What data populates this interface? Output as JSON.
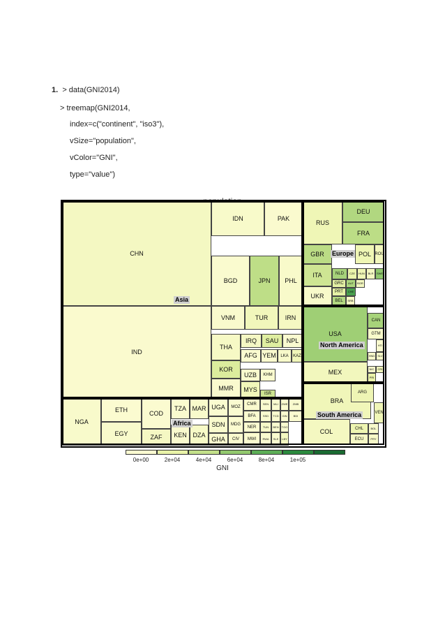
{
  "code": {
    "number": "1.",
    "lines": [
      "> data(GNI2014)",
      "> treemap(GNI2014,",
      "index=c(\"continent\", \"iso3\"),",
      "vSize=\"population\",",
      "vColor=\"GNI\",",
      "type=\"value\")"
    ]
  },
  "treemap": {
    "title": "population",
    "continents": [
      "Asia",
      "Europe",
      "North America",
      "Africa",
      "South America"
    ],
    "cells": [
      {
        "label": "CHN",
        "continent": "Asia",
        "gni": 7400
      },
      {
        "label": "IND",
        "continent": "Asia",
        "gni": 1570
      },
      {
        "label": "IDN",
        "continent": "Asia",
        "gni": 3630
      },
      {
        "label": "PAK",
        "continent": "Asia",
        "gni": 1400
      },
      {
        "label": "BGD",
        "continent": "Asia",
        "gni": 1080
      },
      {
        "label": "JPN",
        "continent": "Asia",
        "gni": 42000
      },
      {
        "label": "PHL",
        "continent": "Asia",
        "gni": 3500
      },
      {
        "label": "VNM",
        "continent": "Asia",
        "gni": 1890
      },
      {
        "label": "TUR",
        "continent": "Asia",
        "gni": 10830
      },
      {
        "label": "IRN",
        "continent": "Asia",
        "gni": 7120
      },
      {
        "label": "THA",
        "continent": "Asia",
        "gni": 5780
      },
      {
        "label": "IRQ",
        "continent": "Asia",
        "gni": 6500
      },
      {
        "label": "SAU",
        "continent": "Asia",
        "gni": 25140
      },
      {
        "label": "NPL",
        "continent": "Asia",
        "gni": 730
      },
      {
        "label": "AFG",
        "continent": "Asia",
        "gni": 680
      },
      {
        "label": "YEM",
        "continent": "Asia",
        "gni": 1300
      },
      {
        "label": "LKA",
        "continent": "Asia",
        "gni": 3400
      },
      {
        "label": "KAZ",
        "continent": "Asia",
        "gni": 11670
      },
      {
        "label": "KOR",
        "continent": "Asia",
        "gni": 27090
      },
      {
        "label": "UZB",
        "continent": "Asia",
        "gni": 2090
      },
      {
        "label": "KHM",
        "continent": "Asia",
        "gni": 1020
      },
      {
        "label": "MMR",
        "continent": "Asia",
        "gni": 1270
      },
      {
        "label": "MYS",
        "continent": "Asia",
        "gni": 11120
      },
      {
        "label": "ISR",
        "continent": "Asia",
        "gni": 35320
      },
      {
        "label": "RUS",
        "continent": "Europe",
        "gni": 13220
      },
      {
        "label": "DEU",
        "continent": "Europe",
        "gni": 47640
      },
      {
        "label": "FRA",
        "continent": "Europe",
        "gni": 42960
      },
      {
        "label": "GBR",
        "continent": "Europe",
        "gni": 43430
      },
      {
        "label": "POL",
        "continent": "Europe",
        "gni": 13730
      },
      {
        "label": "ROU",
        "continent": "Europe",
        "gni": 9520
      },
      {
        "label": "ITA",
        "continent": "Europe",
        "gni": 34270
      },
      {
        "label": "NLD",
        "continent": "Europe",
        "gni": 51890
      },
      {
        "label": "CZE",
        "continent": "Europe",
        "gni": 18350
      },
      {
        "label": "HUN",
        "continent": "Europe",
        "gni": 13470
      },
      {
        "label": "BLR",
        "continent": "Europe",
        "gni": 7340
      },
      {
        "label": "SWE",
        "continent": "Europe",
        "gni": 61610
      },
      {
        "label": "GRC",
        "continent": "Europe",
        "gni": 22680
      },
      {
        "label": "AUT",
        "continent": "Europe",
        "gni": 49670
      },
      {
        "label": "BGR",
        "continent": "Europe",
        "gni": 7620
      },
      {
        "label": "UKR",
        "continent": "Europe",
        "gni": 3560
      },
      {
        "label": "PRT",
        "continent": "Europe",
        "gni": 21360
      },
      {
        "label": "CHE",
        "continent": "Europe",
        "gni": 88120
      },
      {
        "label": "BEL",
        "continent": "Europe",
        "gni": 47260
      },
      {
        "label": "SRB",
        "continent": "Europe",
        "gni": 5820
      },
      {
        "label": "USA",
        "continent": "North America",
        "gni": 55200
      },
      {
        "label": "CAN",
        "continent": "North America",
        "gni": 51630
      },
      {
        "label": "GTM",
        "continent": "North America",
        "gni": 3430
      },
      {
        "label": "HTI",
        "continent": "North America",
        "gni": 830
      },
      {
        "label": "HND",
        "continent": "North America",
        "gni": 2270
      },
      {
        "label": "SLV",
        "continent": "North America",
        "gni": 3920
      },
      {
        "label": "NIC",
        "continent": "North America",
        "gni": 1870
      },
      {
        "label": "CRI",
        "continent": "North America",
        "gni": 10120
      },
      {
        "label": "PRI",
        "continent": "North America",
        "gni": 19310
      },
      {
        "label": "MEX",
        "continent": "North America",
        "gni": 9870
      },
      {
        "label": "BRA",
        "continent": "South America",
        "gni": 11760
      },
      {
        "label": "ARG",
        "continent": "South America",
        "gni": 14160
      },
      {
        "label": "VEN",
        "continent": "South America",
        "gni": 12500
      },
      {
        "label": "COL",
        "continent": "South America",
        "gni": 7970
      },
      {
        "label": "CHL",
        "continent": "South America",
        "gni": 14910
      },
      {
        "label": "BOL",
        "continent": "South America",
        "gni": 2870
      },
      {
        "label": "ECU",
        "continent": "South America",
        "gni": 6090
      },
      {
        "label": "PRY",
        "continent": "South America",
        "gni": 4400
      },
      {
        "label": "NGA",
        "continent": "Africa",
        "gni": 2950
      },
      {
        "label": "ETH",
        "continent": "Africa",
        "gni": 550
      },
      {
        "label": "EGY",
        "continent": "Africa",
        "gni": 3050
      },
      {
        "label": "COD",
        "continent": "Africa",
        "gni": 380
      },
      {
        "label": "ZAF",
        "continent": "Africa",
        "gni": 6800
      },
      {
        "label": "TZA",
        "continent": "Africa",
        "gni": 930
      },
      {
        "label": "MAR",
        "continent": "Africa",
        "gni": 3070
      },
      {
        "label": "KEN",
        "continent": "Africa",
        "gni": 1290
      },
      {
        "label": "DZA",
        "continent": "Africa",
        "gni": 5490
      },
      {
        "label": "UGA",
        "continent": "Africa",
        "gni": 670
      },
      {
        "label": "MOZ",
        "continent": "Africa",
        "gni": 600
      },
      {
        "label": "SDN",
        "continent": "Africa",
        "gni": 1710
      },
      {
        "label": "MDG",
        "continent": "Africa",
        "gni": 440
      },
      {
        "label": "GHA",
        "continent": "Africa",
        "gni": 1590
      },
      {
        "label": "CIV",
        "continent": "Africa",
        "gni": 1450
      },
      {
        "label": "CMR",
        "continent": "Africa",
        "gni": 1350
      },
      {
        "label": "BFA",
        "continent": "Africa",
        "gni": 700
      },
      {
        "label": "NER",
        "continent": "Africa",
        "gni": 410
      },
      {
        "label": "MWI",
        "continent": "Africa",
        "gni": 250
      },
      {
        "label": "SEN",
        "continent": "Africa",
        "gni": 1050
      },
      {
        "label": "MLI",
        "continent": "Africa",
        "gni": 650
      },
      {
        "label": "ZWE",
        "continent": "Africa",
        "gni": 840
      },
      {
        "label": "ZMB",
        "continent": "Africa",
        "gni": 1680
      },
      {
        "label": "SSD",
        "continent": "Africa",
        "gni": 940
      },
      {
        "label": "TCD",
        "continent": "Africa",
        "gni": 1010
      },
      {
        "label": "GIN",
        "continent": "Africa",
        "gni": 470
      },
      {
        "label": "BDI",
        "continent": "Africa",
        "gni": 270
      },
      {
        "label": "TUN",
        "continent": "Africa",
        "gni": 4230
      },
      {
        "label": "BEN",
        "continent": "Africa",
        "gni": 890
      },
      {
        "label": "TGO",
        "continent": "Africa",
        "gni": 570
      },
      {
        "label": "RWA",
        "continent": "Africa",
        "gni": 700
      },
      {
        "label": "SLE",
        "continent": "Africa",
        "gni": 720
      },
      {
        "label": "LBY",
        "continent": "Africa",
        "gni": 7820
      }
    ]
  },
  "legend": {
    "title": "GNI",
    "ticks": [
      "0e+00",
      "2e+04",
      "4e+04",
      "6e+04",
      "8e+04",
      "1e+05"
    ],
    "colors": [
      "#fbfbd1",
      "#e9f3a8",
      "#c3e08a",
      "#93c96f",
      "#5dae57",
      "#2b8a3e",
      "#1a6b32"
    ]
  }
}
